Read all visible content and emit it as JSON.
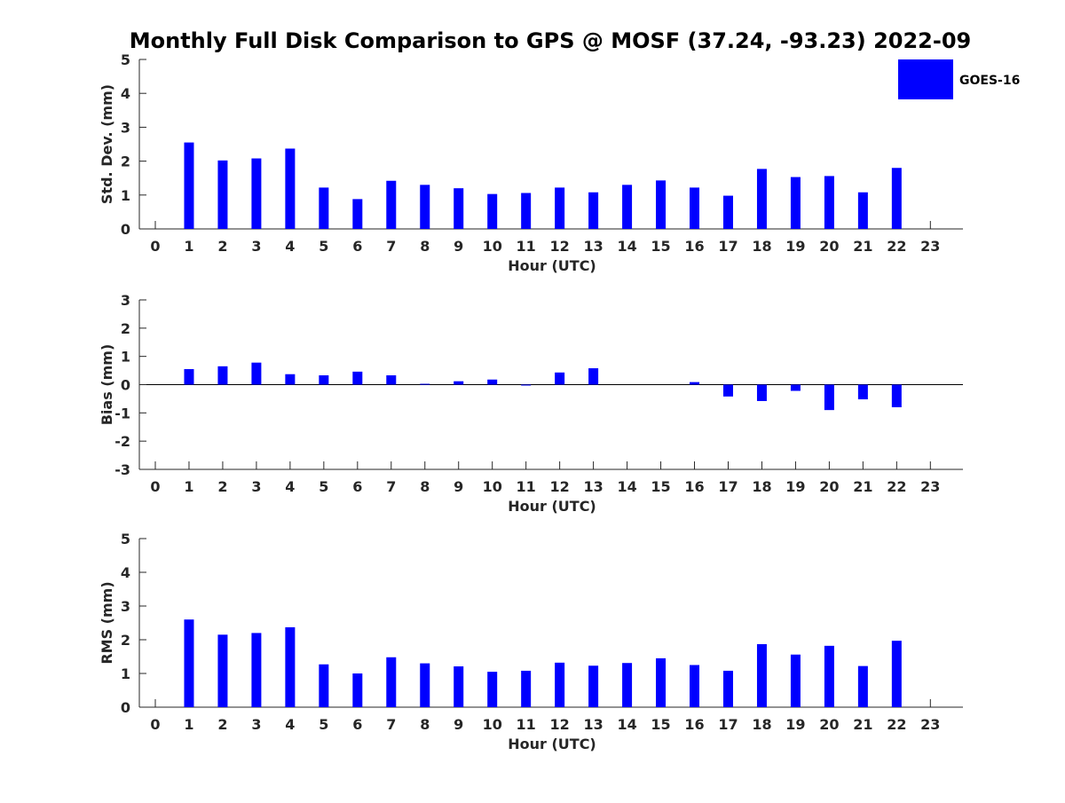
{
  "title": "Monthly Full Disk Comparison to GPS @ MOSF (37.24, -93.23) 2022-09",
  "legend": {
    "label": "GOES-16",
    "color": "#0000ff"
  },
  "chart_data": [
    {
      "type": "bar",
      "xlabel": "Hour (UTC)",
      "ylabel": "Std. Dev. (mm)",
      "ylim": [
        0,
        5
      ],
      "yticks": [
        0,
        1,
        2,
        3,
        4,
        5
      ],
      "categories": [
        0,
        1,
        2,
        3,
        4,
        5,
        6,
        7,
        8,
        9,
        10,
        11,
        12,
        13,
        14,
        15,
        16,
        17,
        18,
        19,
        20,
        21,
        22,
        23
      ],
      "series": [
        {
          "name": "GOES-16",
          "values": [
            null,
            2.55,
            2.02,
            2.08,
            2.37,
            1.22,
            0.88,
            1.42,
            1.3,
            1.2,
            1.03,
            1.06,
            1.22,
            1.08,
            1.3,
            1.43,
            1.22,
            0.98,
            1.77,
            1.53,
            1.56,
            1.08,
            1.8,
            null
          ]
        }
      ],
      "grid": false
    },
    {
      "type": "bar",
      "xlabel": "Hour (UTC)",
      "ylabel": "Bias (mm)",
      "ylim": [
        -3,
        3
      ],
      "yticks": [
        -3,
        -2,
        -1,
        0,
        1,
        2,
        3
      ],
      "categories": [
        0,
        1,
        2,
        3,
        4,
        5,
        6,
        7,
        8,
        9,
        10,
        11,
        12,
        13,
        14,
        15,
        16,
        17,
        18,
        19,
        20,
        21,
        22,
        23
      ],
      "series": [
        {
          "name": "GOES-16",
          "values": [
            null,
            0.55,
            0.65,
            0.78,
            0.37,
            0.33,
            0.46,
            0.33,
            0.03,
            0.12,
            0.18,
            -0.02,
            0.43,
            0.58,
            null,
            null,
            0.09,
            -0.42,
            -0.58,
            -0.22,
            -0.9,
            -0.52,
            -0.8,
            null
          ]
        }
      ],
      "grid": false
    },
    {
      "type": "bar",
      "xlabel": "Hour (UTC)",
      "ylabel": "RMS (mm)",
      "ylim": [
        0,
        5
      ],
      "yticks": [
        0,
        1,
        2,
        3,
        4,
        5
      ],
      "categories": [
        0,
        1,
        2,
        3,
        4,
        5,
        6,
        7,
        8,
        9,
        10,
        11,
        12,
        13,
        14,
        15,
        16,
        17,
        18,
        19,
        20,
        21,
        22,
        23
      ],
      "series": [
        {
          "name": "GOES-16",
          "values": [
            null,
            2.6,
            2.15,
            2.2,
            2.37,
            1.27,
            1.0,
            1.48,
            1.3,
            1.21,
            1.05,
            1.08,
            1.32,
            1.23,
            1.31,
            1.45,
            1.25,
            1.08,
            1.87,
            1.56,
            1.82,
            1.22,
            1.97,
            null
          ]
        }
      ],
      "grid": false
    }
  ]
}
